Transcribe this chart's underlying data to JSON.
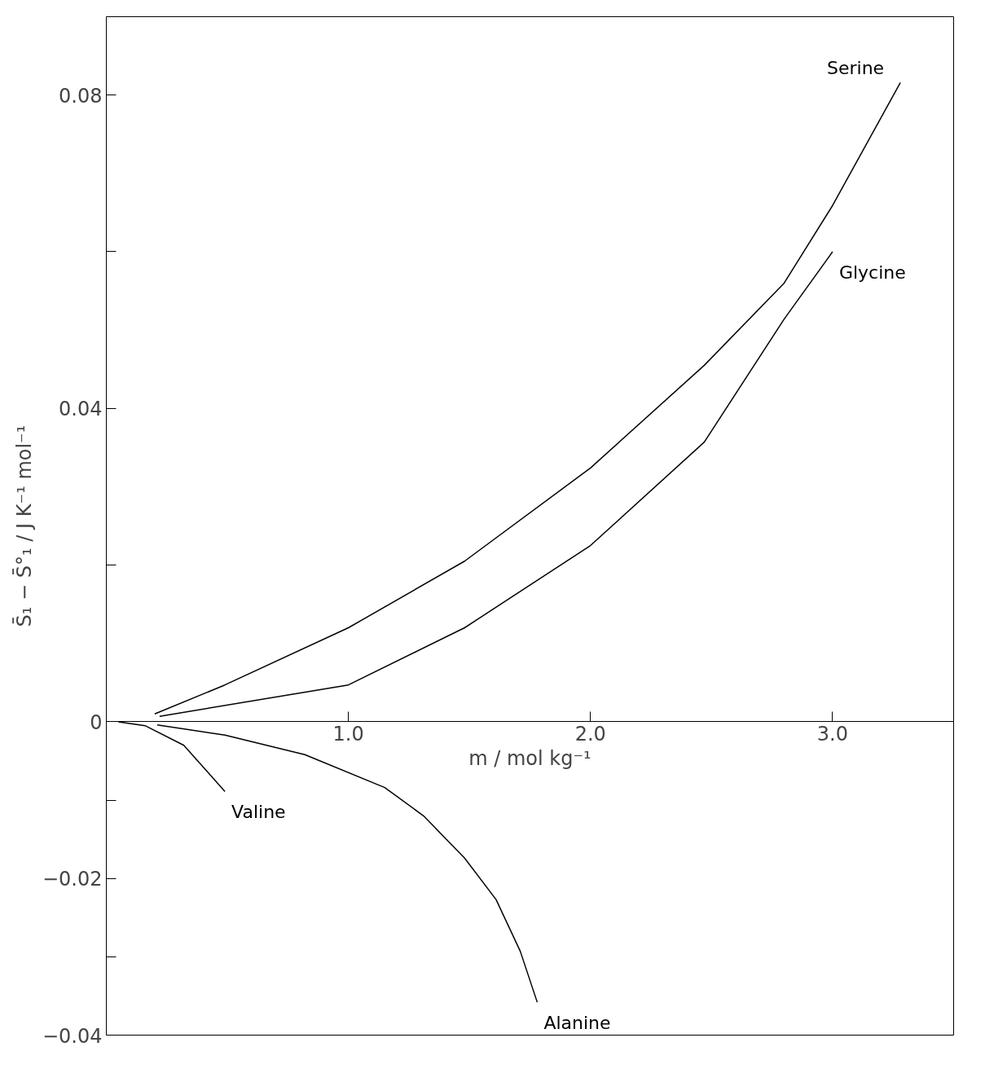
{
  "chart_data": {
    "type": "line",
    "xlabel": "m / mol kg⁻¹",
    "ylabel": "S̄₁ − S̄°₁ / J K⁻¹ mol⁻¹",
    "xlim": [
      0,
      3.5
    ],
    "ylim": [
      -0.04,
      0.09
    ],
    "xticks": [
      {
        "value": 1,
        "label": "1.0"
      },
      {
        "value": 2,
        "label": "2.0"
      },
      {
        "value": 3,
        "label": "3.0"
      }
    ],
    "yticks": [
      {
        "value": 0.08,
        "label": "0.08"
      },
      {
        "value": 0.06,
        "label": null
      },
      {
        "value": 0.04,
        "label": "0.04"
      },
      {
        "value": 0.02,
        "label": null
      },
      {
        "value": 0,
        "label": "0"
      },
      {
        "value": -0.01,
        "label": null
      },
      {
        "value": -0.02,
        "label": "−0.02"
      },
      {
        "value": -0.03,
        "label": null
      },
      {
        "value": -0.04,
        "label": "−0.04"
      }
    ],
    "grid": false,
    "marker": "none",
    "line_style": "solid",
    "series": [
      {
        "name": "Serine",
        "color": "#000000",
        "x": [
          0.2,
          0.49,
          1.0,
          1.48,
          2.0,
          2.47,
          2.8,
          3.0,
          3.28
        ],
        "values": [
          0.001,
          0.0047,
          0.012,
          0.0205,
          0.0324,
          0.0455,
          0.056,
          0.0659,
          0.0816
        ]
      },
      {
        "name": "Glycine",
        "color": "#000000",
        "x": [
          0.22,
          1.0,
          1.48,
          2.0,
          2.47,
          2.8,
          3.0
        ],
        "values": [
          0.0007,
          0.0047,
          0.012,
          0.0225,
          0.0357,
          0.0514,
          0.06
        ]
      },
      {
        "name": "Valine",
        "color": "#000000",
        "x": [
          0.05,
          0.16,
          0.32,
          0.49
        ],
        "values": [
          0,
          -0.0005,
          -0.003,
          -0.0089
        ]
      },
      {
        "name": "Alanine",
        "color": "#000000",
        "x": [
          0.21,
          0.49,
          0.82,
          1.15,
          1.31,
          1.48,
          1.61,
          1.71,
          1.78
        ],
        "values": [
          -0.0004,
          -0.0017,
          -0.0042,
          -0.0084,
          -0.012,
          -0.0174,
          -0.0227,
          -0.0293,
          -0.0358
        ]
      }
    ]
  }
}
